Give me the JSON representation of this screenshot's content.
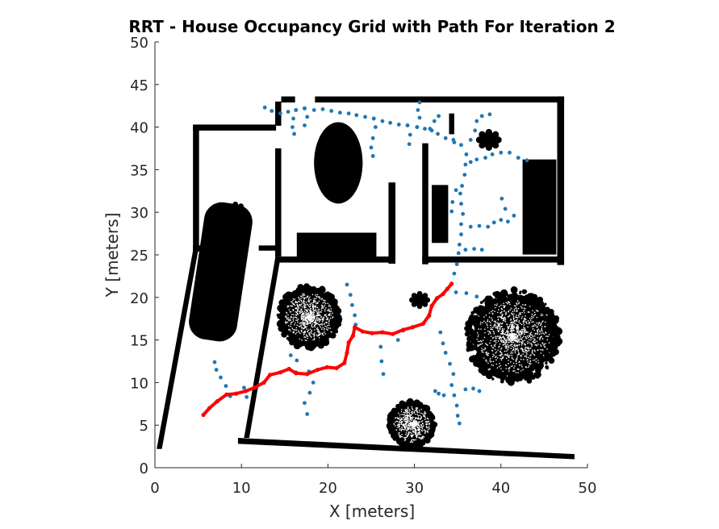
{
  "chart_data": {
    "type": "scatter",
    "title": "RRT - House Occupancy Grid with Path For Iteration 2",
    "xlabel": "X [meters]",
    "ylabel": "Y [meters]",
    "xlim": [
      0,
      50
    ],
    "ylim": [
      0,
      50
    ],
    "x_ticks": [
      0,
      10,
      20,
      30,
      40,
      50
    ],
    "y_ticks": [
      0,
      5,
      10,
      15,
      20,
      25,
      30,
      35,
      40,
      45,
      50
    ],
    "x_tick_labels": [
      "0",
      "10",
      "20",
      "30",
      "40",
      "50"
    ],
    "y_tick_labels": [
      "0",
      "5",
      "10",
      "15",
      "20",
      "25",
      "30",
      "35",
      "40",
      "45",
      "50"
    ],
    "grid": false,
    "colors": {
      "occupied": "#000000",
      "tree": "#1f77b4",
      "path": "#ff0000"
    },
    "occupancy": {
      "rects": [
        [
          13.9,
          40.2,
          0.7,
          2.8
        ],
        [
          13.9,
          25,
          0.7,
          12.5
        ],
        [
          14.6,
          42.9,
          1.6,
          0.7
        ],
        [
          18.5,
          42.9,
          28.8,
          0.7
        ],
        [
          46.5,
          24.1,
          0.8,
          19.5
        ],
        [
          30.9,
          24.1,
          16.4,
          0.7
        ],
        [
          30.9,
          24.1,
          0.7,
          14
        ],
        [
          13.9,
          24.1,
          13.6,
          0.7
        ],
        [
          27,
          24.1,
          0.8,
          9.4
        ],
        [
          4.4,
          39.6,
          9.6,
          0.7
        ],
        [
          4.4,
          25.6,
          0.7,
          14.6
        ],
        [
          4.4,
          25.5,
          1.5,
          0.6
        ],
        [
          6.6,
          25.5,
          2.4,
          0.6
        ],
        [
          12,
          25.5,
          2.6,
          0.6
        ],
        [
          16.4,
          24.6,
          9.2,
          3
        ],
        [
          32,
          26.5,
          1.9,
          6.7
        ],
        [
          42.5,
          25.2,
          3.9,
          11
        ],
        [
          34,
          39.2,
          0.6,
          2.4
        ]
      ],
      "polys": [
        [
          [
            0.2,
            2.2
          ],
          [
            0.8,
            2.2
          ],
          [
            5,
            25.5
          ],
          [
            4.4,
            25.5
          ]
        ],
        [
          [
            10.3,
            3.5
          ],
          [
            10.9,
            3.5
          ],
          [
            14.5,
            24.6
          ],
          [
            13.9,
            24.6
          ]
        ],
        [
          [
            9.6,
            2.8
          ],
          [
            48.5,
            1
          ],
          [
            48.5,
            1.6
          ],
          [
            9.6,
            3.5
          ]
        ]
      ],
      "ellipses": [
        [
          21.2,
          35.8,
          2.8,
          4.7
        ],
        [
          21.2,
          35.8,
          2.8,
          4.7
        ]
      ],
      "car": [
        7.6,
        23,
        5.6,
        16,
        8.5
      ],
      "bushes": [
        [
          17.8,
          17.7,
          3.5
        ],
        [
          41.4,
          15.4,
          5.3
        ],
        [
          29.7,
          5.1,
          2.6
        ]
      ],
      "blobs": [
        [
          9.3,
          30.2,
          0.9
        ],
        [
          30.6,
          19.7,
          0.9
        ],
        [
          38.6,
          38.5,
          1.1
        ]
      ]
    },
    "series": [
      {
        "values": [
          [
            5.6,
            6.2
          ],
          [
            6.3,
            7
          ],
          [
            7.2,
            7.8
          ],
          [
            8.3,
            8.6
          ],
          [
            9.4,
            8.7
          ],
          [
            10.5,
            9
          ],
          [
            11.5,
            9.4
          ],
          [
            12.6,
            10
          ],
          [
            13.3,
            10.9
          ],
          [
            14.5,
            11.2
          ],
          [
            15.5,
            11.6
          ],
          [
            16.3,
            11.1
          ],
          [
            17.6,
            11
          ],
          [
            18.8,
            11.5
          ],
          [
            19.9,
            11.8
          ],
          [
            21,
            11.7
          ],
          [
            21.9,
            12.3
          ],
          [
            22.2,
            13.5
          ],
          [
            22.4,
            14.7
          ],
          [
            22.9,
            15.5
          ],
          [
            23.1,
            16.5
          ],
          [
            24,
            16
          ],
          [
            25.1,
            15.8
          ],
          [
            26.3,
            15.9
          ],
          [
            27.5,
            15.7
          ],
          [
            28.7,
            16.2
          ],
          [
            29.8,
            16.5
          ],
          [
            31,
            16.9
          ],
          [
            31.7,
            17.9
          ],
          [
            32,
            19
          ],
          [
            32.6,
            19.9
          ],
          [
            33.3,
            20.4
          ],
          [
            33.8,
            21
          ],
          [
            34.3,
            21.6
          ]
        ]
      },
      {
        "values": [
          [
            8.7,
            8.4
          ],
          [
            8.2,
            9.6
          ],
          [
            7.6,
            10.6
          ],
          [
            7.1,
            11.5
          ],
          [
            6.9,
            12.4
          ],
          [
            10.3,
            9.4
          ],
          [
            10.6,
            8.3
          ],
          [
            17.8,
            11.3
          ],
          [
            18.3,
            10
          ],
          [
            17.9,
            8.8
          ],
          [
            17.3,
            7.6
          ],
          [
            17.6,
            6.3
          ],
          [
            16.3,
            11.2
          ],
          [
            16.4,
            12.6
          ],
          [
            15.7,
            13.2
          ],
          [
            26.3,
            15.9
          ],
          [
            26.1,
            14.2
          ],
          [
            26.2,
            12.5
          ],
          [
            26.4,
            11
          ],
          [
            28.7,
            16.1
          ],
          [
            28.1,
            15
          ],
          [
            23.2,
            16.8
          ],
          [
            23.1,
            17.9
          ],
          [
            22.8,
            19.1
          ],
          [
            22.6,
            20.3
          ],
          [
            22.2,
            21.5
          ],
          [
            32,
            19
          ],
          [
            31.7,
            17.8
          ],
          [
            33,
            15.9
          ],
          [
            33.3,
            14.6
          ],
          [
            33.6,
            13.5
          ],
          [
            34.1,
            12.2
          ],
          [
            34.5,
            11
          ],
          [
            35.9,
            9.2
          ],
          [
            36.8,
            9.3
          ],
          [
            37.5,
            9
          ],
          [
            34.3,
            9.7
          ],
          [
            34.6,
            8.5
          ],
          [
            34.9,
            7.3
          ],
          [
            35,
            6.1
          ],
          [
            35.2,
            5.2
          ],
          [
            33.4,
            8.5
          ],
          [
            32.8,
            8.7
          ],
          [
            32.4,
            9
          ],
          [
            33.8,
            21
          ],
          [
            34.8,
            20.6
          ],
          [
            36,
            20.5
          ],
          [
            37.2,
            20.1
          ],
          [
            34.3,
            21.6
          ],
          [
            34.6,
            22.8
          ],
          [
            34.9,
            23.9
          ],
          [
            35.1,
            25.2
          ],
          [
            35.9,
            25.6
          ],
          [
            36.9,
            25.7
          ],
          [
            37.8,
            25.6
          ],
          [
            35.2,
            26.2
          ],
          [
            35.4,
            27.4
          ],
          [
            35.4,
            28.6
          ],
          [
            35.6,
            29.8
          ],
          [
            35.4,
            31
          ],
          [
            35.3,
            32.2
          ],
          [
            35.5,
            33.1
          ],
          [
            35.8,
            34.4
          ],
          [
            35.9,
            35.6
          ],
          [
            36,
            36.8
          ],
          [
            35.4,
            37.9
          ],
          [
            34.5,
            38.5
          ],
          [
            36.5,
            28.3
          ],
          [
            37.5,
            28.4
          ],
          [
            38.5,
            28.3
          ],
          [
            39.2,
            28.8
          ],
          [
            40,
            29.1
          ],
          [
            40.8,
            28.9
          ],
          [
            41.5,
            29.6
          ],
          [
            40.5,
            30.4
          ],
          [
            40.1,
            31.6
          ],
          [
            34.3,
            30.1
          ],
          [
            34.4,
            31.2
          ],
          [
            34.8,
            32.6
          ],
          [
            36.5,
            35.9
          ],
          [
            37.2,
            36.2
          ],
          [
            38.2,
            36.4
          ],
          [
            39,
            36.8
          ],
          [
            40,
            37
          ],
          [
            41,
            37
          ],
          [
            42,
            36.4
          ],
          [
            43,
            36.1
          ],
          [
            36.5,
            38.5
          ],
          [
            37,
            39.6
          ],
          [
            37.2,
            40.7
          ],
          [
            37.8,
            41.3
          ],
          [
            38.7,
            41.5
          ],
          [
            34.6,
            38.2
          ],
          [
            33.6,
            38.7
          ],
          [
            32.7,
            39.2
          ],
          [
            32,
            39.6
          ],
          [
            31.2,
            39.8
          ],
          [
            30.3,
            40
          ],
          [
            29.2,
            40.2
          ],
          [
            28.2,
            40.3
          ],
          [
            27.2,
            40.5
          ],
          [
            26.3,
            40.7
          ],
          [
            25.3,
            41
          ],
          [
            24.3,
            41.2
          ],
          [
            23.3,
            41.4
          ],
          [
            22.4,
            41.6
          ],
          [
            21.4,
            41.7
          ],
          [
            20.4,
            41.9
          ],
          [
            19.4,
            42.1
          ],
          [
            18.4,
            42
          ],
          [
            17.3,
            42.2
          ],
          [
            16.3,
            42
          ],
          [
            15.4,
            41.8
          ],
          [
            14.5,
            41.6
          ],
          [
            13.5,
            41.9
          ],
          [
            12.7,
            42.3
          ],
          [
            31.8,
            39.8
          ],
          [
            32.3,
            40.7
          ],
          [
            32.8,
            41.3
          ],
          [
            30.3,
            40
          ],
          [
            30.6,
            41.1
          ],
          [
            30.4,
            42
          ],
          [
            30.6,
            42.9
          ],
          [
            29.2,
            40.2
          ],
          [
            29.5,
            39.1
          ],
          [
            29.4,
            38
          ],
          [
            25.3,
            41
          ],
          [
            25.5,
            40
          ],
          [
            25.2,
            38.7
          ],
          [
            25,
            37.6
          ],
          [
            25.2,
            36.6
          ],
          [
            16.3,
            42
          ],
          [
            16,
            41
          ],
          [
            15.9,
            40
          ],
          [
            16.1,
            39.2
          ],
          [
            17.3,
            42.2
          ],
          [
            17.6,
            41.2
          ],
          [
            17.3,
            40.2
          ]
        ]
      }
    ]
  }
}
